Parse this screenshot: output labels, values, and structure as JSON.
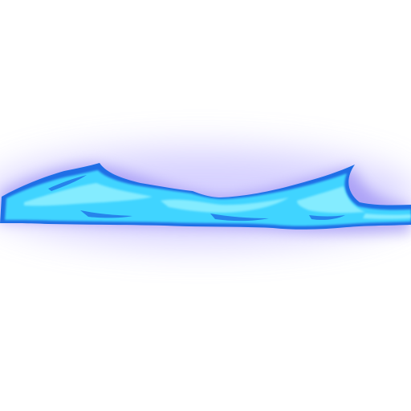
{
  "sprite": {
    "name": "blue-slash-wave-effect",
    "colors": {
      "glow": "#8a7cf0",
      "glow_soft": "#c9c2ff",
      "outline": "#1f6fe6",
      "body": "#3fd4ff",
      "body_light": "#8ff0ff",
      "background": "#ffffff"
    }
  }
}
